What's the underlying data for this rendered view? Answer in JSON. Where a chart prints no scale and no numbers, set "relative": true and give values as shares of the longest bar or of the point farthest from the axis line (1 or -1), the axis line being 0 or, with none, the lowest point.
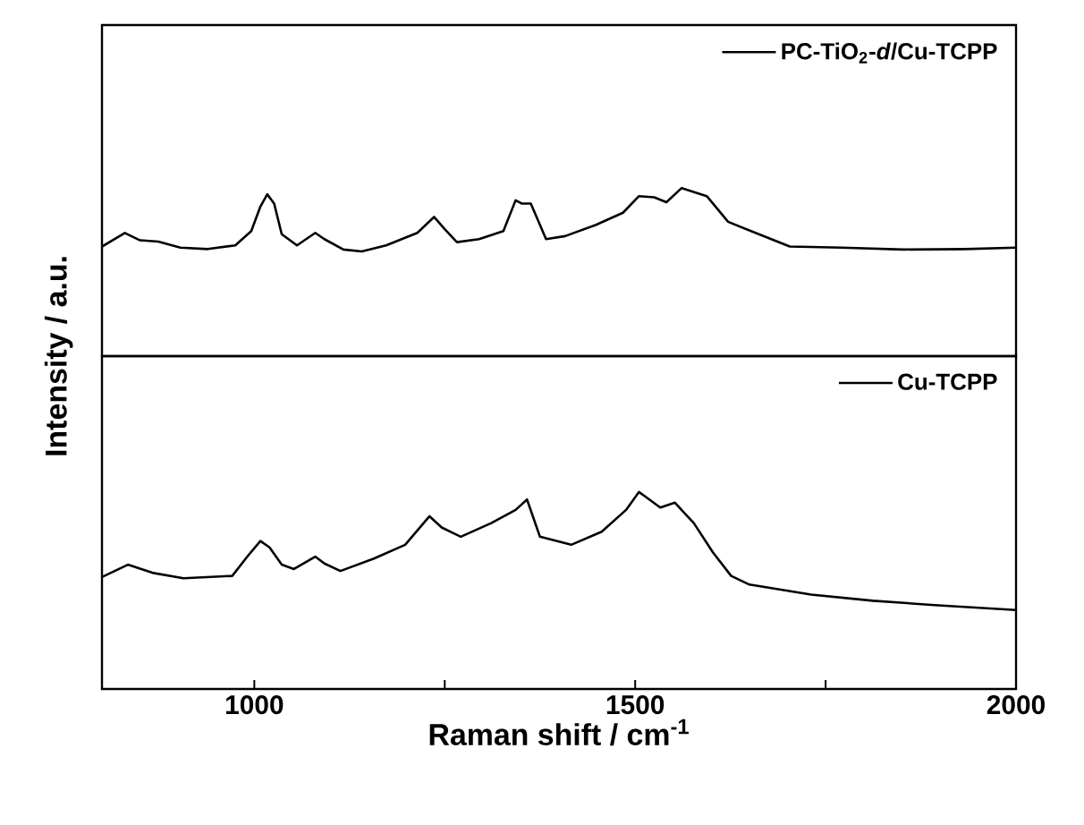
{
  "chart_data": [
    {
      "type": "line",
      "relative": true,
      "xlim": [
        800,
        2000
      ],
      "tick_labels": false,
      "legend": "top right",
      "ylabel": "Intensity / a.u.",
      "x": [
        800,
        830,
        850,
        874,
        903,
        939,
        975,
        996,
        1008,
        1017,
        1026,
        1036,
        1056,
        1080,
        1092,
        1117,
        1141,
        1173,
        1214,
        1236,
        1250,
        1266,
        1295,
        1327,
        1343,
        1351,
        1363,
        1383,
        1408,
        1448,
        1484,
        1505,
        1525,
        1541,
        1561,
        1594,
        1622,
        1658,
        1703,
        1771,
        1852,
        1933,
        2000
      ],
      "series": [
        {
          "name": "PC-TiO$_{2}$-*d*/Cu-TCPP",
          "color": "#000000",
          "values": [
            0.652,
            0.733,
            0.689,
            0.681,
            0.645,
            0.637,
            0.659,
            0.744,
            0.89,
            0.963,
            0.908,
            0.725,
            0.659,
            0.733,
            0.696,
            0.634,
            0.623,
            0.659,
            0.733,
            0.828,
            0.755,
            0.678,
            0.696,
            0.744,
            0.927,
            0.908,
            0.908,
            0.696,
            0.714,
            0.78,
            0.853,
            0.952,
            0.945,
            0.916,
            1.0,
            0.952,
            0.799,
            0.733,
            0.652,
            0.645,
            0.634,
            0.637,
            0.645
          ]
        }
      ]
    },
    {
      "type": "line",
      "relative": true,
      "xlim": [
        800,
        2000
      ],
      "tick_labels": "x",
      "legend": "top right",
      "xlabel": "Raman shift / cm$^{-1}$",
      "xticks": [
        1000,
        {
          "value": 1250,
          "label": null
        },
        1500,
        {
          "value": 1750,
          "label": null
        },
        2000
      ],
      "x": [
        800,
        834,
        866,
        907,
        971,
        992,
        1008,
        1020,
        1036,
        1052,
        1080,
        1092,
        1113,
        1157,
        1198,
        1230,
        1246,
        1271,
        1311,
        1343,
        1358,
        1375,
        1416,
        1456,
        1488,
        1505,
        1513,
        1533,
        1552,
        1577,
        1602,
        1626,
        1650,
        1731,
        1812,
        1893,
        2000
      ],
      "series": [
        {
          "name": "Cu-TCPP",
          "color": "#000000",
          "values": [
            0.568,
            0.631,
            0.59,
            0.562,
            0.574,
            0.678,
            0.751,
            0.719,
            0.631,
            0.609,
            0.672,
            0.637,
            0.599,
            0.662,
            0.732,
            0.877,
            0.82,
            0.773,
            0.842,
            0.909,
            0.962,
            0.773,
            0.732,
            0.798,
            0.909,
            1.0,
            0.978,
            0.921,
            0.946,
            0.842,
            0.694,
            0.574,
            0.53,
            0.479,
            0.448,
            0.426,
            0.401
          ]
        }
      ]
    }
  ]
}
